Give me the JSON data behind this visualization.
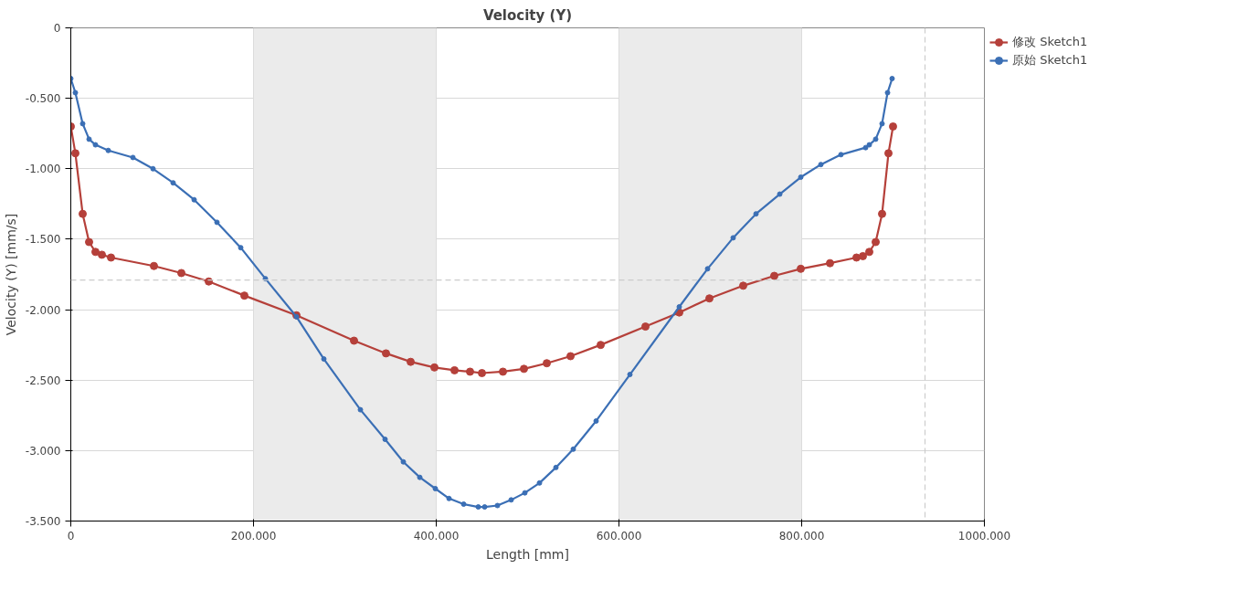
{
  "chart_data": {
    "type": "line",
    "title": "Velocity (Y)",
    "xlabel": "Length [mm]",
    "ylabel": "Velocity (Y) [mm/s]",
    "xlim": [
      0,
      1000
    ],
    "ylim": [
      -3.5,
      0
    ],
    "xticks": [
      0,
      {
        "value": 200,
        "label": "200.000"
      },
      {
        "value": 400,
        "label": "400.000"
      },
      {
        "value": 600,
        "label": "600.000"
      },
      {
        "value": 800,
        "label": "800.000"
      },
      {
        "value": 1000,
        "label": "1000.000"
      }
    ],
    "yticks": [
      {
        "value": -3.5,
        "label": "-3.500"
      },
      {
        "value": -3.0,
        "label": "-3.000"
      },
      {
        "value": -2.5,
        "label": "-2.500"
      },
      {
        "value": -2.0,
        "label": "-2.000"
      },
      {
        "value": -1.5,
        "label": "-1.500"
      },
      {
        "value": -1.0,
        "label": "-1.000"
      },
      {
        "value": -0.5,
        "label": "-0.500"
      },
      0
    ],
    "grid": true,
    "legend": "top right",
    "marker": "circle",
    "line_style": "solid",
    "bands": [
      {
        "axis": "x",
        "from": 200,
        "to": 400,
        "color": "#ebebeb"
      },
      {
        "axis": "x",
        "from": 600,
        "to": 800,
        "color": "#ebebeb"
      }
    ],
    "ref_lines": [
      {
        "axis": "x",
        "value": 935,
        "color": "#cccccc",
        "line_style": "dashed"
      },
      {
        "axis": "y",
        "value": -1.79,
        "color": "#cccccc",
        "line_style": "dashed"
      }
    ],
    "series": [
      {
        "name": "修改 Sketch1",
        "color": "#b5403a",
        "x": [
          0,
          5,
          13,
          20,
          27,
          34,
          44,
          91,
          121,
          151,
          190,
          247,
          310,
          345,
          372,
          398,
          420,
          437,
          450,
          473,
          496,
          521,
          547,
          580,
          629,
          666,
          699,
          736,
          770,
          799,
          831,
          860,
          867,
          874,
          881,
          888,
          895,
          900
        ],
        "values": [
          -0.7,
          -0.89,
          -1.32,
          -1.52,
          -1.59,
          -1.61,
          -1.63,
          -1.69,
          -1.74,
          -1.8,
          -1.9,
          -2.04,
          -2.22,
          -2.31,
          -2.37,
          -2.41,
          -2.43,
          -2.44,
          -2.45,
          -2.44,
          -2.42,
          -2.38,
          -2.33,
          -2.25,
          -2.12,
          -2.02,
          -1.92,
          -1.83,
          -1.76,
          -1.71,
          -1.67,
          -1.63,
          -1.62,
          -1.59,
          -1.52,
          -1.32,
          -0.89,
          -0.7
        ]
      },
      {
        "name": "原始 Sketch1",
        "color": "#3b6fb5",
        "x": [
          0,
          5,
          13,
          20,
          27,
          41,
          68,
          90,
          112,
          135,
          160,
          186,
          213,
          247,
          277,
          317,
          344,
          364,
          382,
          399,
          414,
          430,
          446,
          453,
          467,
          482,
          497,
          513,
          531,
          550,
          575,
          612,
          666,
          697,
          725,
          750,
          776,
          799,
          821,
          843,
          870,
          874,
          881,
          888,
          894,
          899
        ],
        "values": [
          -0.36,
          -0.46,
          -0.68,
          -0.79,
          -0.83,
          -0.87,
          -0.92,
          -1.0,
          -1.1,
          -1.22,
          -1.38,
          -1.56,
          -1.78,
          -2.05,
          -2.35,
          -2.71,
          -2.92,
          -3.08,
          -3.19,
          -3.27,
          -3.34,
          -3.38,
          -3.4,
          -3.4,
          -3.39,
          -3.35,
          -3.3,
          -3.23,
          -3.12,
          -2.99,
          -2.79,
          -2.46,
          -1.98,
          -1.71,
          -1.49,
          -1.32,
          -1.18,
          -1.06,
          -0.97,
          -0.9,
          -0.85,
          -0.83,
          -0.79,
          -0.68,
          -0.46,
          -0.36
        ]
      }
    ]
  }
}
